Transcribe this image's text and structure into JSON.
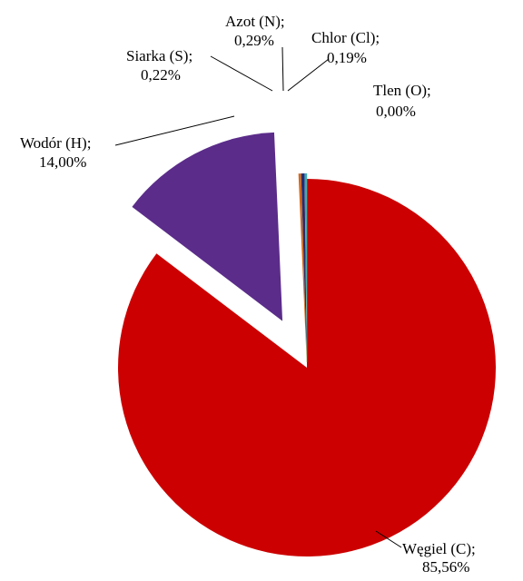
{
  "chart_data": {
    "type": "pie",
    "slices": [
      {
        "name": "Węgiel (C)",
        "value": 85.56,
        "label_line1": "Węgiel (C);",
        "label_line2": "85,56%",
        "color": "#cc0000"
      },
      {
        "name": "Wodór (H)",
        "value": 14.0,
        "label_line1": "Wodór (H);",
        "label_line2": "14,00%",
        "color": "#5b2c8a"
      },
      {
        "name": "Siarka (S)",
        "value": 0.22,
        "label_line1": "Siarka (S);",
        "label_line2": "0,22%",
        "color": "#d2691e"
      },
      {
        "name": "Azot (N)",
        "value": 0.29,
        "label_line1": "Azot (N);",
        "label_line2": "0,29%",
        "color": "#2b2b6b"
      },
      {
        "name": "Chlor (Cl)",
        "value": 0.19,
        "label_line1": "Chlor (Cl);",
        "label_line2": "0,19%",
        "color": "#29a9d6"
      },
      {
        "name": "Tlen (O)",
        "value": 0.0,
        "label_line1": "Tlen (O);",
        "label_line2": "0,00%",
        "color": "#7fbf3f"
      }
    ]
  }
}
